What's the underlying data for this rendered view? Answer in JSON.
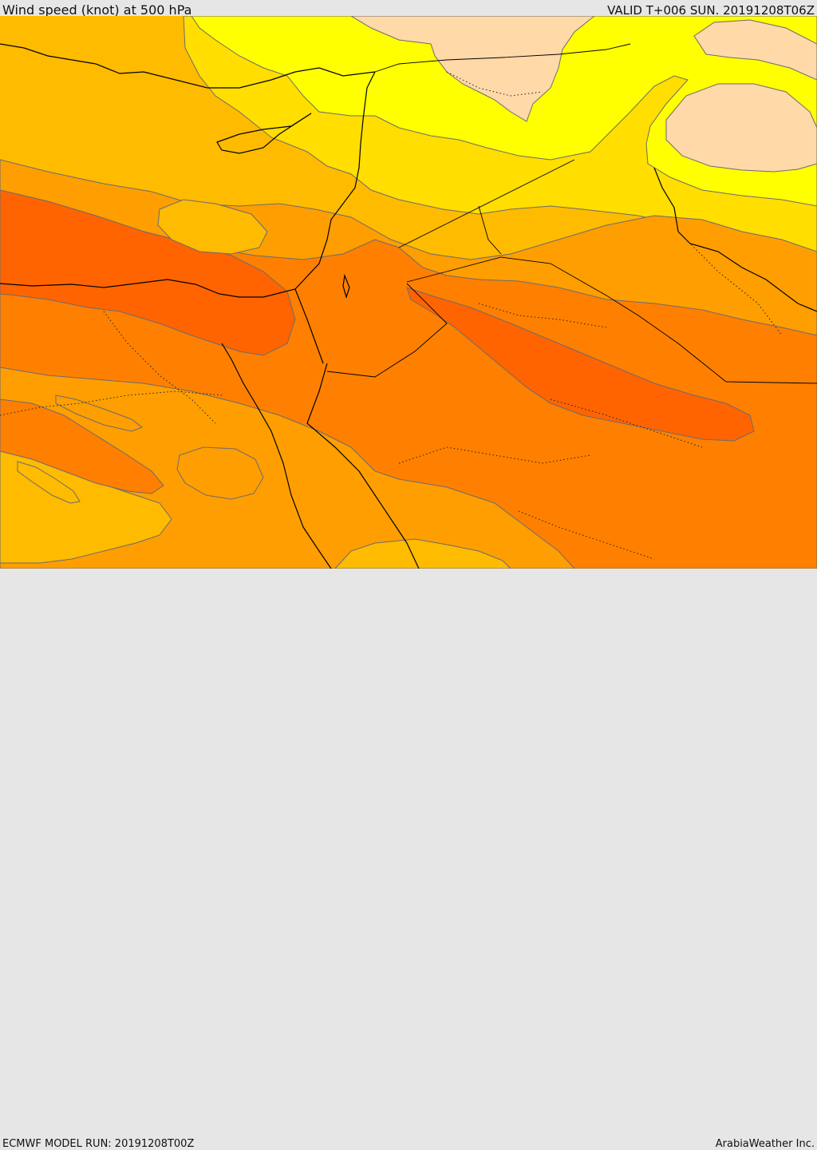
{
  "header": {
    "title": "Wind speed (knot) at 500 hPa",
    "valid": "VALID T+006 SUN. 20191208T06Z"
  },
  "footer": {
    "model_run": "ECMWF MODEL RUN: 20191208T00Z",
    "credit": "ArabiaWeather Inc."
  },
  "colors": {
    "band_40_50": "#ffd9a8",
    "band_50_60": "#ffff00",
    "band_60_70": "#ffde00",
    "band_70_80": "#ffbb00",
    "band_80_90": "#ff9e00",
    "band_90_100": "#ff8000",
    "band_100_plus": "#ff6400",
    "contour": "#6b6b70",
    "coastline": "#000000"
  }
}
